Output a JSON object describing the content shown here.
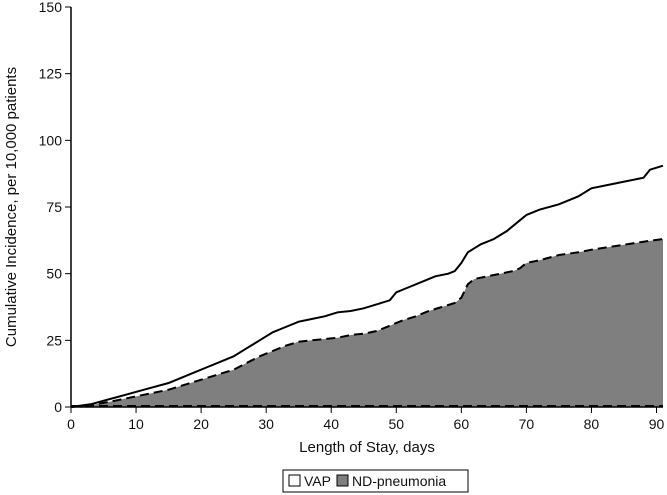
{
  "chart_data": {
    "type": "area",
    "title": "",
    "xlabel": "Length of Stay, days",
    "ylabel": "Cumulative Incidence, per 10,000 patients",
    "xlim": [
      0,
      91
    ],
    "ylim": [
      0,
      150
    ],
    "xticks": [
      0,
      10,
      20,
      30,
      40,
      50,
      60,
      70,
      80,
      90
    ],
    "yticks": [
      0,
      25,
      50,
      75,
      100,
      125,
      150
    ],
    "grid": false,
    "legend_position": "bottom-center",
    "series": [
      {
        "name": "VAP",
        "fill_color": "#ffffff",
        "line_style": "solid",
        "x": [
          0,
          3,
          6,
          9,
          12,
          15,
          17,
          19,
          21,
          23,
          25,
          27,
          29,
          31,
          33,
          35,
          37,
          39,
          41,
          43,
          45,
          47,
          49,
          50,
          52,
          54,
          56,
          58,
          59,
          60,
          61,
          63,
          65,
          67,
          69,
          70,
          72,
          75,
          78,
          80,
          84,
          88,
          89,
          91
        ],
        "y": [
          0,
          1,
          3,
          5,
          7,
          9,
          11,
          13,
          15,
          17,
          19,
          22,
          25,
          28,
          30,
          32,
          33,
          34,
          35.5,
          36,
          37,
          38.5,
          40,
          43,
          45,
          47,
          49,
          50,
          51,
          54,
          58,
          61,
          63,
          66,
          70,
          72,
          74,
          76,
          79,
          82,
          84,
          86,
          89,
          90.5
        ]
      },
      {
        "name": "ND-pneumonia",
        "fill_color": "#7f7f7f",
        "line_style": "dashed",
        "x": [
          0,
          3,
          6,
          9,
          12,
          15,
          17,
          19,
          21,
          23,
          25,
          27,
          29,
          31,
          33,
          35,
          37,
          39,
          41,
          43,
          45,
          47,
          49,
          51,
          53,
          55,
          57,
          59,
          60,
          61,
          62,
          64,
          66,
          68,
          69,
          70,
          72,
          75,
          78,
          80,
          84,
          88,
          91
        ],
        "y": [
          0,
          0.7,
          2,
          3.5,
          5,
          6.5,
          8,
          9.5,
          11,
          12.5,
          14,
          16.5,
          19,
          21,
          23,
          24.5,
          25,
          25.5,
          26,
          27,
          27.5,
          28.5,
          30.5,
          32.5,
          34,
          36,
          37.5,
          39,
          41,
          46,
          48,
          49,
          50,
          51,
          52,
          54,
          55,
          57,
          58,
          59,
          60.5,
          62,
          63
        ]
      }
    ],
    "baseline": {
      "y": 0,
      "line_style": "dashed"
    }
  }
}
